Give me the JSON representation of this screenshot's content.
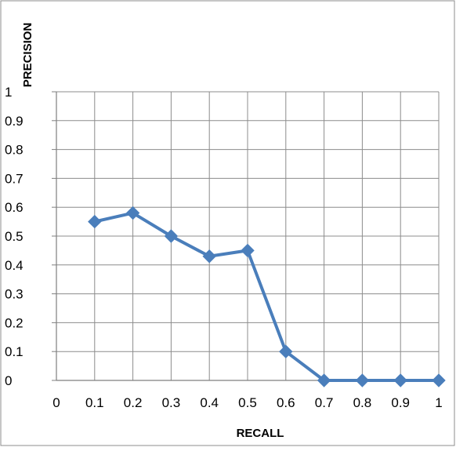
{
  "chart_data": {
    "type": "line",
    "title": "",
    "xlabel": "RECALL",
    "ylabel": "PRECISION",
    "xlim": [
      0,
      1
    ],
    "ylim": [
      0,
      1
    ],
    "x_ticks": [
      "0",
      "0.1",
      "0.2",
      "0.3",
      "0.4",
      "0.5",
      "0.6",
      "0.7",
      "0.8",
      "0.9",
      "1"
    ],
    "y_ticks": [
      "0",
      "0.1",
      "0.2",
      "0.3",
      "0.4",
      "0.5",
      "0.6",
      "0.7",
      "0.8",
      "0.9",
      "1"
    ],
    "grid": true,
    "legend": "none",
    "marker": "diamond",
    "series": [
      {
        "color": "#4a7ebb",
        "x": [
          0.1,
          0.2,
          0.3,
          0.4,
          0.5,
          0.6,
          0.7,
          0.8,
          0.9,
          1.0
        ],
        "y": [
          0.55,
          0.58,
          0.5,
          0.43,
          0.45,
          0.1,
          0.0,
          0.0,
          0.0,
          0.0
        ]
      }
    ]
  }
}
